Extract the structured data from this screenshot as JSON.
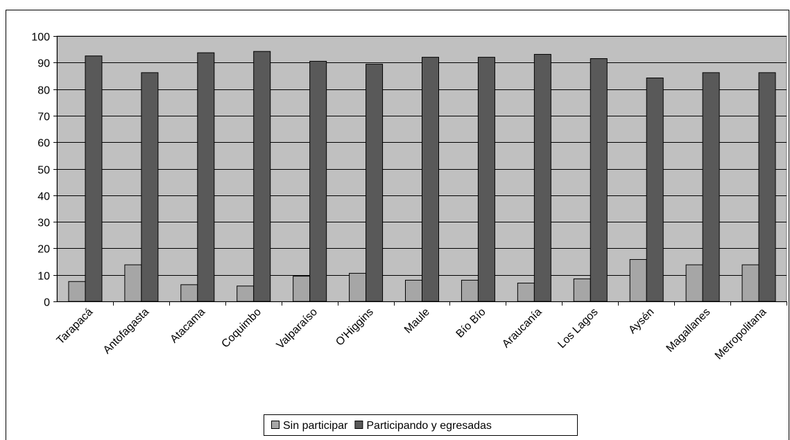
{
  "chart_data": {
    "type": "bar",
    "title": "",
    "xlabel": "",
    "ylabel": "",
    "ylim": [
      0,
      100
    ],
    "yticks": [
      0,
      10,
      20,
      30,
      40,
      50,
      60,
      70,
      80,
      90,
      100
    ],
    "grid": true,
    "legend_position": "bottom",
    "categories": [
      "Tarapacá",
      "Antofagasta",
      "Atacama",
      "Coquimbo",
      "Valparaíso",
      "O'Higgins",
      "Maule",
      "Bío Bío",
      "Araucanía",
      "Los Lagos",
      "Aysén",
      "Magallanes",
      "Metropolitana"
    ],
    "series": [
      {
        "name": "Sin participar",
        "color": "#a6a6a6",
        "values": [
          7.5,
          13.8,
          6.3,
          5.8,
          9.5,
          10.6,
          8.0,
          8.0,
          6.9,
          8.5,
          15.8,
          13.8,
          13.8
        ]
      },
      {
        "name": "Participando y egresadas",
        "color": "#595959",
        "values": [
          92.5,
          86.2,
          93.7,
          94.2,
          90.5,
          89.4,
          92.0,
          92.0,
          93.1,
          91.5,
          84.2,
          86.2,
          86.2
        ]
      }
    ],
    "plot_background": "#c0c0c0"
  }
}
